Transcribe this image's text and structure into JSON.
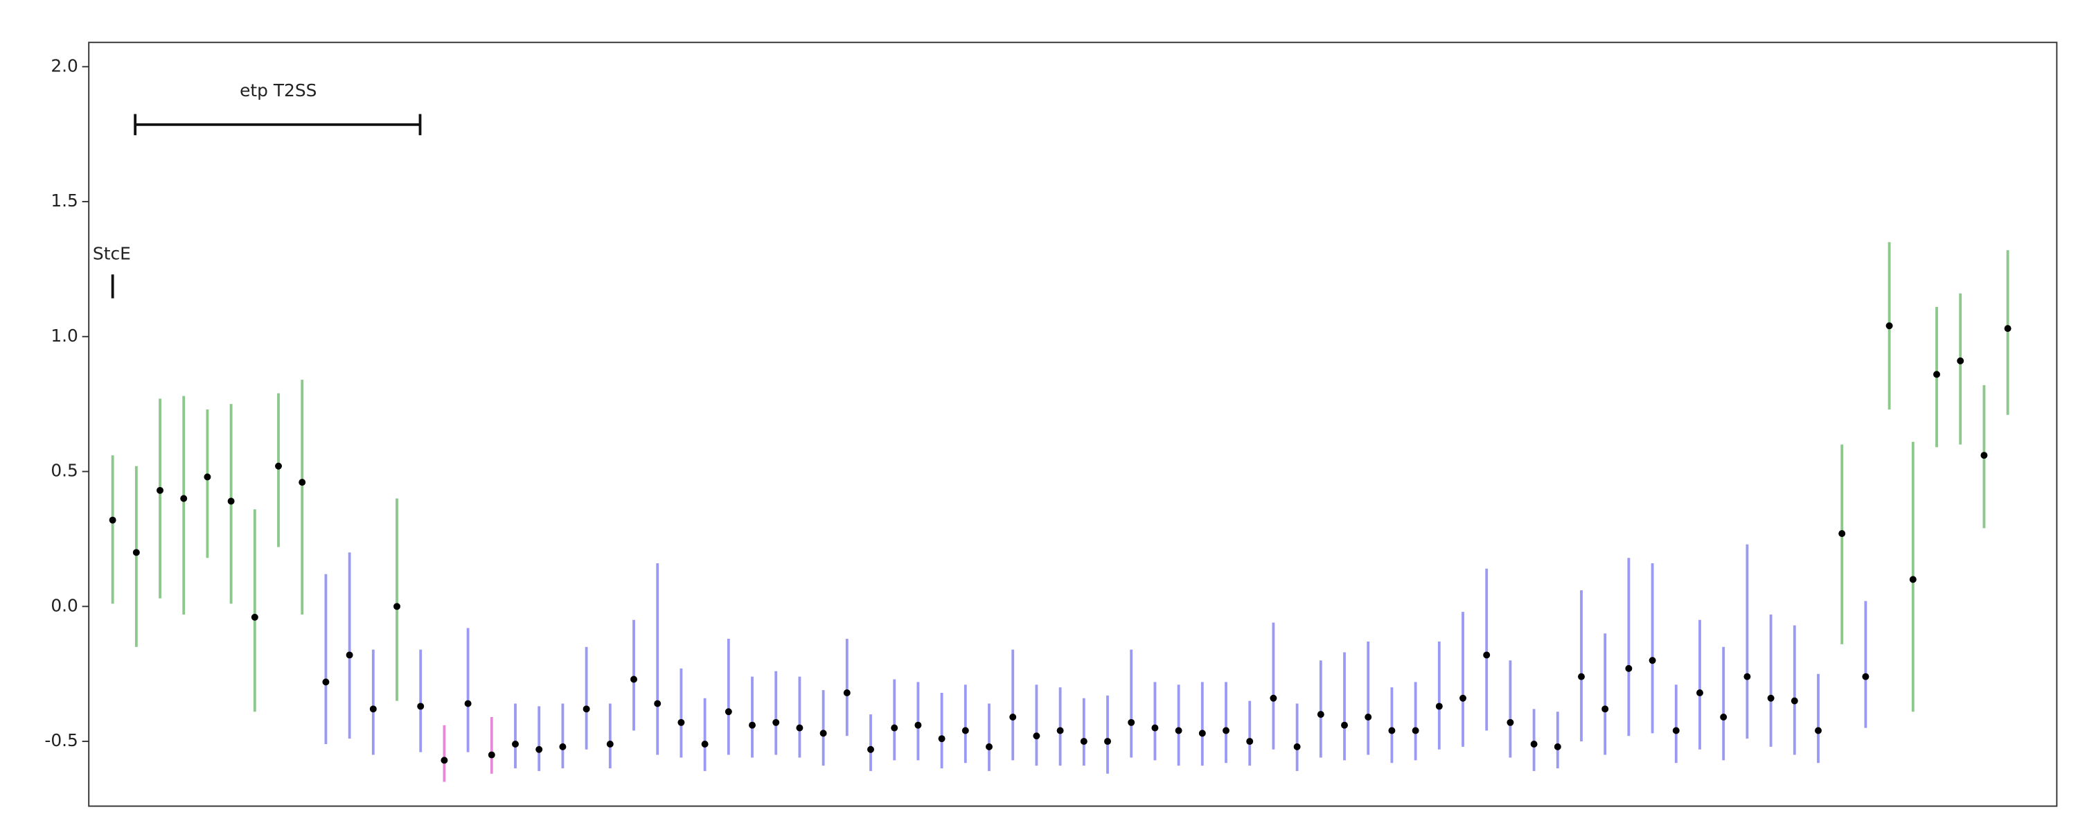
{
  "chart_data": {
    "type": "errorbar",
    "annotations": [
      "etp T2SS",
      "StcE"
    ],
    "values": [
      0.32,
      0.2,
      0.43,
      0.4,
      0.48,
      0.39,
      -0.04,
      0.52,
      0.46,
      -0.28,
      -0.18,
      -0.38,
      0.0,
      -0.37,
      -0.57,
      -0.36,
      -0.55,
      -0.51,
      -0.53,
      -0.52,
      -0.38,
      -0.51,
      -0.27,
      -0.36,
      -0.43,
      -0.51,
      -0.39,
      -0.44,
      -0.43,
      -0.45,
      -0.47,
      -0.32,
      -0.53,
      -0.45,
      -0.44,
      -0.49,
      -0.46,
      -0.52,
      -0.41,
      -0.48,
      -0.46,
      -0.5,
      -0.5,
      -0.43,
      -0.45,
      -0.46,
      -0.47,
      -0.46,
      -0.5,
      -0.34,
      -0.52,
      -0.4,
      -0.44,
      -0.41,
      -0.46,
      -0.46,
      -0.37,
      -0.34,
      -0.18,
      -0.43,
      -0.51,
      -0.52,
      -0.26,
      -0.38,
      -0.23,
      -0.2,
      -0.46,
      -0.32,
      -0.41,
      -0.26,
      -0.34,
      -0.35,
      -0.46,
      0.27,
      -0.26,
      1.04,
      0.1,
      0.86,
      0.91,
      0.56,
      1.03
    ],
    "low": [
      0.01,
      -0.15,
      0.03,
      -0.03,
      0.18,
      0.01,
      -0.39,
      0.22,
      -0.03,
      -0.51,
      -0.49,
      -0.55,
      -0.35,
      -0.54,
      -0.65,
      -0.54,
      -0.62,
      -0.6,
      -0.61,
      -0.6,
      -0.53,
      -0.6,
      -0.46,
      -0.55,
      -0.56,
      -0.61,
      -0.55,
      -0.56,
      -0.55,
      -0.56,
      -0.59,
      -0.48,
      -0.61,
      -0.57,
      -0.57,
      -0.6,
      -0.58,
      -0.61,
      -0.57,
      -0.59,
      -0.59,
      -0.59,
      -0.62,
      -0.56,
      -0.57,
      -0.59,
      -0.59,
      -0.58,
      -0.59,
      -0.53,
      -0.61,
      -0.56,
      -0.57,
      -0.55,
      -0.58,
      -0.57,
      -0.53,
      -0.52,
      -0.46,
      -0.56,
      -0.61,
      -0.6,
      -0.5,
      -0.55,
      -0.48,
      -0.47,
      -0.58,
      -0.53,
      -0.57,
      -0.49,
      -0.52,
      -0.55,
      -0.58,
      -0.14,
      -0.45,
      0.73,
      -0.39,
      0.59,
      0.6,
      0.29,
      0.71
    ],
    "high": [
      0.56,
      0.52,
      0.77,
      0.78,
      0.73,
      0.75,
      0.36,
      0.79,
      0.84,
      0.12,
      0.2,
      -0.16,
      0.4,
      -0.16,
      -0.44,
      -0.08,
      -0.41,
      -0.36,
      -0.37,
      -0.36,
      -0.15,
      -0.36,
      -0.05,
      0.16,
      -0.23,
      -0.34,
      -0.12,
      -0.26,
      -0.24,
      -0.26,
      -0.31,
      -0.12,
      -0.4,
      -0.27,
      -0.28,
      -0.32,
      -0.29,
      -0.36,
      -0.16,
      -0.29,
      -0.3,
      -0.34,
      -0.33,
      -0.16,
      -0.28,
      -0.29,
      -0.28,
      -0.28,
      -0.35,
      -0.06,
      -0.36,
      -0.2,
      -0.17,
      -0.13,
      -0.3,
      -0.28,
      -0.13,
      -0.02,
      0.14,
      -0.2,
      -0.38,
      -0.39,
      0.06,
      -0.1,
      0.18,
      0.16,
      -0.29,
      -0.05,
      -0.15,
      0.23,
      -0.03,
      -0.07,
      -0.25,
      0.6,
      0.02,
      1.35,
      0.61,
      1.11,
      1.16,
      0.82,
      1.32
    ],
    "colors": [
      "#8cc88c",
      "#8cc88c",
      "#8cc88c",
      "#8cc88c",
      "#8cc88c",
      "#8cc88c",
      "#8cc88c",
      "#8cc88c",
      "#8cc88c",
      "#9a9af5",
      "#9a9af5",
      "#9a9af5",
      "#8cc88c",
      "#9a9af5",
      "#e68ad8",
      "#9a9af5",
      "#e68ad8",
      "#9a9af5",
      "#9a9af5",
      "#9a9af5",
      "#9a9af5",
      "#9a9af5",
      "#9a9af5",
      "#9a9af5",
      "#9a9af5",
      "#9a9af5",
      "#9a9af5",
      "#9a9af5",
      "#9a9af5",
      "#9a9af5",
      "#9a9af5",
      "#9a9af5",
      "#9a9af5",
      "#9a9af5",
      "#9a9af5",
      "#9a9af5",
      "#9a9af5",
      "#9a9af5",
      "#9a9af5",
      "#9a9af5",
      "#9a9af5",
      "#9a9af5",
      "#9a9af5",
      "#9a9af5",
      "#9a9af5",
      "#9a9af5",
      "#9a9af5",
      "#9a9af5",
      "#9a9af5",
      "#9a9af5",
      "#9a9af5",
      "#9a9af5",
      "#9a9af5",
      "#9a9af5",
      "#9a9af5",
      "#9a9af5",
      "#9a9af5",
      "#9a9af5",
      "#9a9af5",
      "#9a9af5",
      "#9a9af5",
      "#9a9af5",
      "#9a9af5",
      "#9a9af5",
      "#9a9af5",
      "#9a9af5",
      "#9a9af5",
      "#9a9af5",
      "#9a9af5",
      "#9a9af5",
      "#9a9af5",
      "#9a9af5",
      "#9a9af5",
      "#8cc88c",
      "#9a9af5",
      "#8cc88c",
      "#8cc88c",
      "#8cc88c",
      "#8cc88c",
      "#8cc88c",
      "#8cc88c"
    ],
    "point_color": "#000000",
    "ylim": [
      -0.74,
      2.09
    ],
    "yticks": [
      {
        "value": 2,
        "label": "2.0"
      },
      {
        "value": 1.5,
        "label": "1.5"
      },
      {
        "value": 1,
        "label": "1.0"
      },
      {
        "value": 0.5,
        "label": "0.5"
      },
      {
        "value": 0,
        "label": "0.0"
      },
      {
        "value": -0.5,
        "label": "-0.5"
      }
    ]
  }
}
